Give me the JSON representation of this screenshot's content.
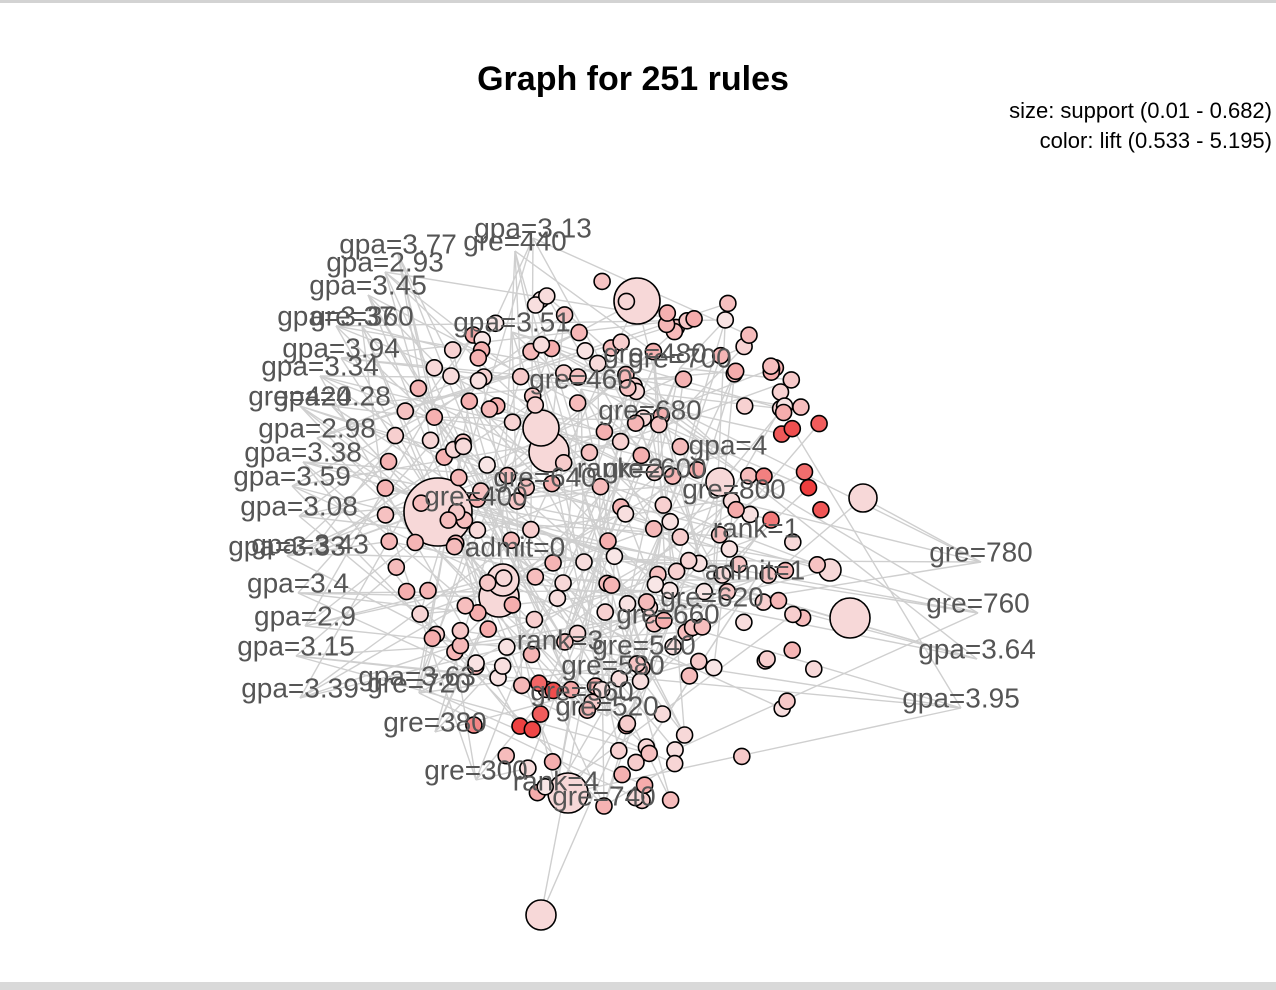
{
  "title": "Graph for 251 rules",
  "legend": {
    "size": "size: support (0.01 - 0.682)",
    "color": "color: lift (0.533 - 5.195)"
  },
  "colors": {
    "node_low": "#f8e6e6",
    "node_high": "#ee3b3b",
    "edge": "#cfcfcf",
    "label": "#555555"
  },
  "item_labels": [
    "gpa=3.13",
    "gpa=3.77",
    "gre=440",
    "gpa=2.93",
    "gpa=3.45",
    "gpa=3.37",
    "gre=360",
    "gpa=3.51",
    "gpa=3.94",
    "gpa=3.34",
    "gpa=4.28",
    "gre=420",
    "gpa=2.98",
    "gpa=3.38",
    "gpa=3.59",
    "gpa=3.08",
    "gre=400",
    "gpa=3.43",
    "gpa=3.33",
    "gpa=3.4",
    "gpa=2.9",
    "gpa=3.15",
    "gpa=3.39",
    "gpa=3.63",
    "gre=720",
    "gre=380",
    "gre=300",
    "rank=4",
    "gre=740",
    "gre=480",
    "gre=700",
    "gre=460",
    "gre=680",
    "gpa=4",
    "rank=2",
    "gre=600",
    "gre=640",
    "gre=800",
    "rank=1",
    "admit=0",
    "admit=1",
    "gre=620",
    "gre=660",
    "rank=3",
    "gre=540",
    "gre=580",
    "gre=560",
    "gre=520",
    "gre=780",
    "gre=760",
    "gpa=3.64",
    "gpa=3.95"
  ]
}
